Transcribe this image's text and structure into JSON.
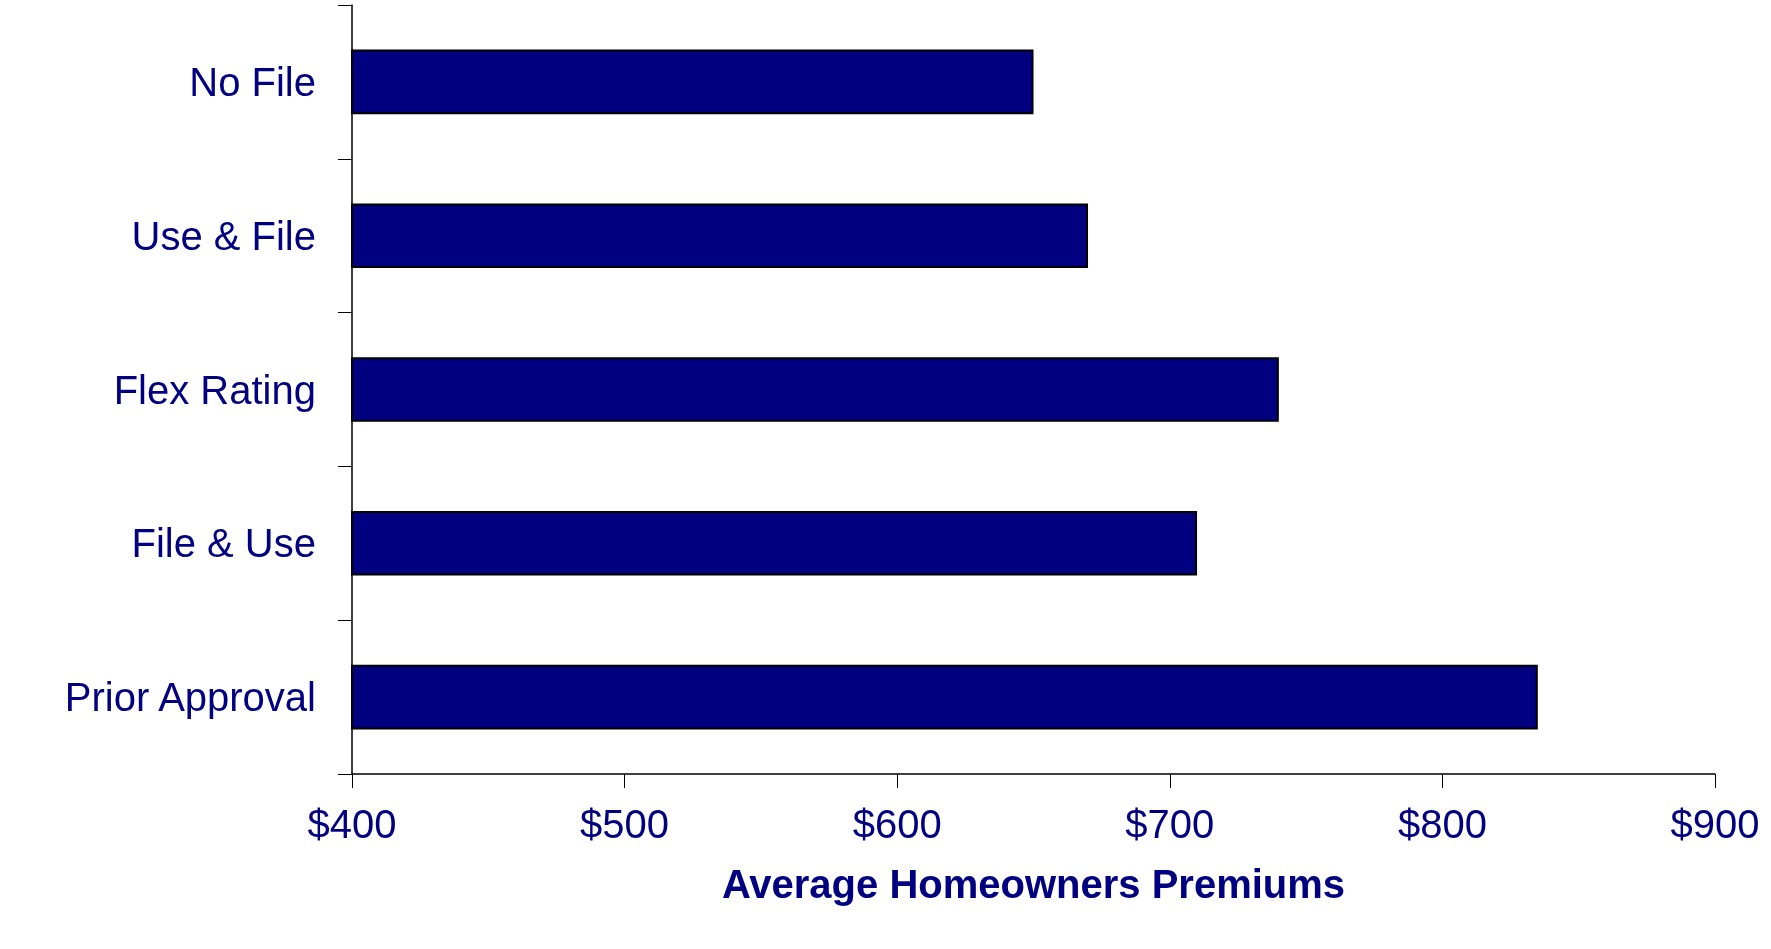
{
  "chart_data": {
    "type": "bar",
    "orientation": "horizontal",
    "xlabel": "Average Homeowners Premiums",
    "categories": [
      "No File",
      "Use & File",
      "Flex Rating",
      "File & Use",
      "Prior Approval"
    ],
    "values": [
      650,
      670,
      740,
      710,
      835
    ],
    "color": "#000080",
    "xlim": [
      400,
      900
    ],
    "xticks": [
      {
        "value": 400,
        "label": "$400"
      },
      {
        "value": 500,
        "label": "$500"
      },
      {
        "value": 600,
        "label": "$600"
      },
      {
        "value": 700,
        "label": "$700"
      },
      {
        "value": 800,
        "label": "$800"
      },
      {
        "value": 900,
        "label": "$900"
      }
    ]
  }
}
